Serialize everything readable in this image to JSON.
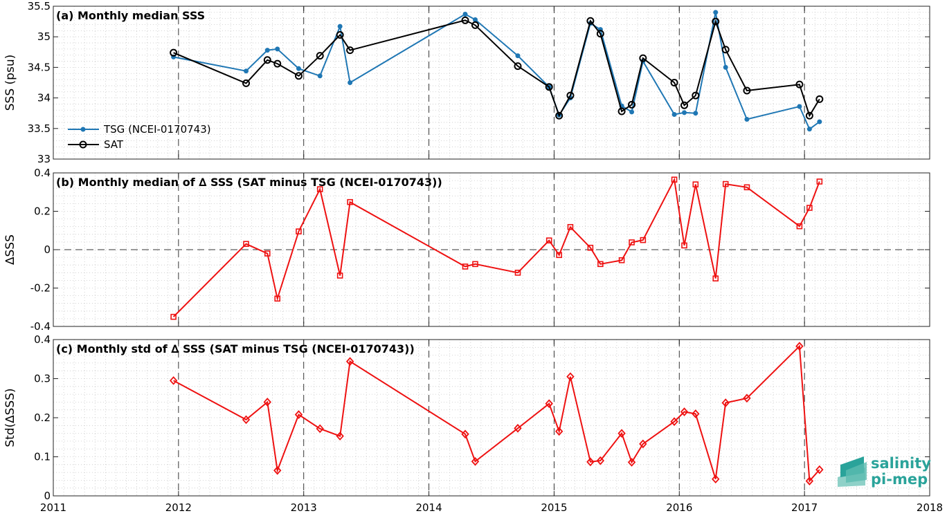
{
  "chart_data": [
    {
      "type": "line",
      "title": "(a) Monthly median SSS",
      "ylabel": "SSS (psu)",
      "ylim": [
        33,
        35.5
      ],
      "yticks": [
        "33",
        "33.5",
        "34",
        "34.5",
        "35",
        "35.5"
      ],
      "ytick_values": [
        33,
        33.5,
        34,
        34.5,
        35,
        35.5
      ],
      "xlim": [
        2011,
        2018
      ],
      "grid": "dotted",
      "legend_placement": "lower-left",
      "legend": [
        "TSG (NCEI-0170743)",
        "SAT"
      ],
      "series": [
        {
          "name": "TSG (NCEI-0170743)",
          "color": "#1f77b4",
          "marker": "dot",
          "x": [
            2011.96,
            2012.54,
            2012.71,
            2012.79,
            2012.96,
            2013.13,
            2013.29,
            2013.37,
            2014.29,
            2014.37,
            2014.71,
            2014.96,
            2015.04,
            2015.13,
            2015.29,
            2015.37,
            2015.54,
            2015.62,
            2015.71,
            2015.96,
            2016.04,
            2016.13,
            2016.29,
            2016.37,
            2016.54,
            2016.96,
            2017.04,
            2017.12
          ],
          "y": [
            34.67,
            34.44,
            34.78,
            34.8,
            34.48,
            34.36,
            35.17,
            34.25,
            35.37,
            35.28,
            34.69,
            34.18,
            33.72,
            34.0,
            35.22,
            35.12,
            33.87,
            33.77,
            34.6,
            33.73,
            33.76,
            33.75,
            35.4,
            34.5,
            33.65,
            33.86,
            33.49,
            33.61
          ]
        },
        {
          "name": "SAT",
          "color": "#000000",
          "marker": "circle",
          "x": [
            2011.96,
            2012.54,
            2012.71,
            2012.79,
            2012.96,
            2013.13,
            2013.29,
            2013.37,
            2014.29,
            2014.37,
            2014.71,
            2014.96,
            2015.04,
            2015.13,
            2015.29,
            2015.37,
            2015.54,
            2015.62,
            2015.71,
            2015.96,
            2016.04,
            2016.13,
            2016.29,
            2016.37,
            2016.54,
            2016.96,
            2017.04,
            2017.12
          ],
          "y": [
            34.74,
            34.24,
            34.62,
            34.56,
            34.36,
            34.69,
            35.03,
            34.78,
            35.27,
            35.19,
            34.52,
            34.18,
            33.71,
            34.04,
            35.26,
            35.05,
            33.78,
            33.89,
            34.65,
            34.25,
            33.88,
            34.04,
            35.25,
            34.79,
            34.12,
            34.22,
            33.71,
            33.98
          ]
        }
      ]
    },
    {
      "type": "line",
      "title": "(b) Monthly median of ∆ SSS (SAT minus TSG (NCEI-0170743))",
      "ylabel": "∆SSS",
      "ylim": [
        -0.4,
        0.4
      ],
      "yticks": [
        "-0.4",
        "-0.2",
        "0",
        "0.2",
        "0.4"
      ],
      "ytick_values": [
        -0.4,
        -0.2,
        0,
        0.2,
        0.4
      ],
      "xlim": [
        2011,
        2018
      ],
      "zero_line": "dashed",
      "series": [
        {
          "name": "",
          "color": "#ee1111",
          "marker": "square",
          "x": [
            2011.96,
            2012.54,
            2012.71,
            2012.79,
            2012.96,
            2013.13,
            2013.29,
            2013.37,
            2014.29,
            2014.37,
            2014.71,
            2014.96,
            2015.04,
            2015.13,
            2015.29,
            2015.37,
            2015.54,
            2015.62,
            2015.71,
            2015.96,
            2016.04,
            2016.13,
            2016.29,
            2016.37,
            2016.54,
            2016.96,
            2017.04,
            2017.12
          ],
          "y": [
            -0.35,
            0.03,
            -0.02,
            -0.255,
            0.095,
            0.315,
            -0.135,
            0.248,
            -0.088,
            -0.075,
            -0.12,
            0.048,
            -0.028,
            0.118,
            0.01,
            -0.075,
            -0.055,
            0.038,
            0.05,
            0.365,
            0.022,
            0.34,
            -0.15,
            0.342,
            0.325,
            0.122,
            0.218,
            0.355
          ]
        }
      ]
    },
    {
      "type": "line",
      "title": "(c) Monthly std of ∆ SSS (SAT minus TSG (NCEI-0170743))",
      "ylabel": "Std(∆SSS)",
      "ylim": [
        0,
        0.4
      ],
      "yticks": [
        "0",
        "0.1",
        "0.2",
        "0.3",
        "0.4"
      ],
      "ytick_values": [
        0,
        0.1,
        0.2,
        0.3,
        0.4
      ],
      "xlim": [
        2011,
        2018
      ],
      "xticks": [
        "2011",
        "2012",
        "2013",
        "2014",
        "2015",
        "2016",
        "2017",
        "2018"
      ],
      "xtick_values": [
        2011,
        2012,
        2013,
        2014,
        2015,
        2016,
        2017,
        2018
      ],
      "series": [
        {
          "name": "",
          "color": "#ee1111",
          "marker": "diamond",
          "x": [
            2011.96,
            2012.54,
            2012.71,
            2012.79,
            2012.96,
            2013.13,
            2013.29,
            2013.37,
            2014.29,
            2014.37,
            2014.71,
            2014.96,
            2015.04,
            2015.13,
            2015.29,
            2015.37,
            2015.54,
            2015.62,
            2015.71,
            2015.96,
            2016.04,
            2016.13,
            2016.29,
            2016.37,
            2016.54,
            2016.96,
            2017.04,
            2017.12
          ],
          "y": [
            0.295,
            0.195,
            0.24,
            0.065,
            0.208,
            0.172,
            0.153,
            0.344,
            0.158,
            0.088,
            0.173,
            0.236,
            0.165,
            0.305,
            0.087,
            0.09,
            0.16,
            0.086,
            0.133,
            0.19,
            0.215,
            0.21,
            0.043,
            0.238,
            0.25,
            0.383,
            0.038,
            0.067
          ]
        }
      ]
    }
  ],
  "logo": {
    "line1": "salinity",
    "line2": "pi-mep"
  }
}
